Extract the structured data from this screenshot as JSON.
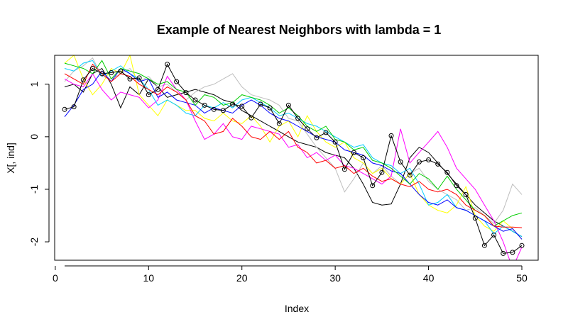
{
  "chart_data": {
    "type": "line",
    "title": "Example of Nearest Neighbors with lambda = 1",
    "xlabel": "Index",
    "ylabel": "X[, ind]",
    "xlim": [
      1,
      50
    ],
    "ylim": [
      -2.35,
      1.55
    ],
    "xticks": [
      0,
      10,
      20,
      30,
      40,
      50
    ],
    "yticks": [
      -2,
      -1,
      0,
      1
    ],
    "grid": false,
    "legend": "none",
    "x": [
      1,
      2,
      3,
      4,
      5,
      6,
      7,
      8,
      9,
      10,
      11,
      12,
      13,
      14,
      15,
      16,
      17,
      18,
      19,
      20,
      21,
      22,
      23,
      24,
      25,
      26,
      27,
      28,
      29,
      30,
      31,
      32,
      33,
      34,
      35,
      36,
      37,
      38,
      39,
      40,
      41,
      42,
      43,
      44,
      45,
      46,
      47,
      48,
      49,
      50
    ],
    "series": [
      {
        "color": "#000000",
        "marker": "circle",
        "values": [
          0.52,
          0.57,
          1.08,
          1.3,
          1.2,
          1.22,
          1.25,
          1.1,
          1.12,
          0.8,
          0.9,
          1.38,
          1.05,
          0.84,
          0.7,
          0.6,
          0.52,
          0.5,
          0.62,
          0.58,
          0.36,
          0.62,
          0.55,
          0.25,
          0.6,
          0.35,
          0.15,
          -0.02,
          0.08,
          -0.1,
          -0.62,
          -0.3,
          -0.4,
          -0.93,
          -0.68,
          0.02,
          -0.48,
          -0.73,
          -0.48,
          -0.44,
          -0.52,
          -0.68,
          -0.93,
          -1.1,
          -1.55,
          -2.07,
          -1.87,
          -2.22,
          -2.2,
          -2.07
        ]
      },
      {
        "color": "#ff0000",
        "values": [
          1.2,
          1.1,
          1.0,
          1.38,
          1.2,
          1.05,
          1.2,
          1.15,
          1.0,
          0.9,
          0.8,
          0.95,
          0.85,
          0.7,
          0.4,
          0.3,
          0.05,
          0.1,
          0.35,
          0.2,
          0.0,
          -0.05,
          0.1,
          -0.05,
          0.1,
          -0.2,
          -0.3,
          -0.5,
          -0.45,
          -0.6,
          -0.55,
          -0.7,
          -0.6,
          -0.75,
          -0.85,
          -0.8,
          -0.9,
          -0.95,
          -0.85,
          -1.0,
          -1.05,
          -1.0,
          -1.1,
          -1.3,
          -1.4,
          -1.5,
          -1.7,
          -1.72,
          -1.72,
          -1.73
        ]
      },
      {
        "color": "#00cd00",
        "values": [
          1.4,
          1.35,
          1.3,
          1.2,
          1.45,
          1.1,
          1.3,
          1.25,
          1.2,
          1.1,
          1.0,
          1.05,
          0.9,
          0.85,
          0.6,
          0.8,
          0.75,
          0.6,
          0.65,
          0.8,
          0.75,
          0.7,
          0.6,
          0.45,
          0.55,
          0.4,
          0.2,
          0.1,
          0.2,
          -0.05,
          -0.1,
          -0.25,
          -0.2,
          -0.45,
          -0.5,
          -0.6,
          -0.75,
          -0.9,
          -0.7,
          -0.8,
          -1.0,
          -0.75,
          -1.0,
          -1.2,
          -1.4,
          -1.5,
          -1.7,
          -1.6,
          -1.5,
          -1.45
        ]
      },
      {
        "color": "#0000ff",
        "values": [
          0.38,
          0.6,
          0.9,
          1.0,
          1.25,
          1.05,
          1.3,
          1.2,
          1.05,
          1.1,
          0.75,
          0.85,
          0.7,
          0.65,
          0.6,
          0.45,
          0.55,
          0.5,
          0.45,
          0.6,
          0.7,
          0.6,
          0.45,
          0.35,
          0.3,
          0.2,
          0.1,
          0.0,
          -0.05,
          -0.1,
          -0.25,
          -0.3,
          -0.35,
          -0.5,
          -0.55,
          -0.65,
          -0.7,
          -0.9,
          -1.1,
          -1.25,
          -1.3,
          -1.2,
          -1.35,
          -1.4,
          -1.5,
          -1.6,
          -1.7,
          -1.8,
          -1.75,
          -1.95
        ]
      },
      {
        "color": "#00ccff",
        "values": [
          1.3,
          1.25,
          1.4,
          1.45,
          1.15,
          1.25,
          1.35,
          1.2,
          1.1,
          0.9,
          0.6,
          0.7,
          0.6,
          0.45,
          0.4,
          0.6,
          0.55,
          0.65,
          0.55,
          0.7,
          0.75,
          0.65,
          0.55,
          0.4,
          0.45,
          0.35,
          0.25,
          0.2,
          0.1,
          0.0,
          -0.1,
          -0.2,
          -0.15,
          -0.4,
          -0.5,
          -0.55,
          -0.7,
          -0.6,
          -0.9,
          -1.3,
          -1.25,
          -1.1,
          -1.35,
          -1.4,
          -1.5,
          -1.6,
          -1.85,
          -1.7,
          -1.8,
          -1.9
        ]
      },
      {
        "color": "#ff00ff",
        "values": [
          1.1,
          1.0,
          0.95,
          1.2,
          0.9,
          0.7,
          0.85,
          0.8,
          0.75,
          0.55,
          0.7,
          1.15,
          0.9,
          0.7,
          0.3,
          -0.05,
          0.05,
          0.25,
          0.0,
          -0.05,
          0.2,
          0.15,
          0.1,
          0.05,
          -0.2,
          -0.15,
          -0.4,
          -0.3,
          -0.45,
          -0.35,
          -0.55,
          -0.6,
          -0.7,
          -0.8,
          -0.9,
          -0.75,
          0.15,
          -0.5,
          -0.3,
          -0.1,
          0.1,
          -0.2,
          -0.6,
          -0.8,
          -1.0,
          -1.3,
          -1.6,
          -2.0,
          -2.5,
          -2.1
        ]
      },
      {
        "color": "#ffff00",
        "values": [
          1.4,
          1.55,
          1.1,
          0.8,
          1.0,
          1.3,
          1.2,
          1.55,
          0.8,
          0.6,
          0.4,
          0.7,
          0.6,
          0.5,
          0.5,
          0.35,
          0.3,
          0.45,
          0.3,
          0.25,
          0.4,
          0.2,
          -0.1,
          0.2,
          0.3,
          0.0,
          0.4,
          0.1,
          -0.1,
          -0.2,
          -0.1,
          -0.4,
          -0.5,
          -0.7,
          -0.6,
          -0.8,
          -0.9,
          -0.7,
          -1.1,
          -1.3,
          -1.4,
          -1.45,
          -1.3,
          -0.95,
          -1.5,
          -1.7,
          -1.8,
          -1.6,
          -1.75,
          -1.95
        ]
      },
      {
        "color": "#bebebe",
        "values": [
          1.05,
          1.25,
          1.35,
          1.5,
          1.15,
          1.1,
          1.2,
          1.3,
          1.05,
          1.15,
          0.95,
          1.0,
          0.85,
          0.7,
          0.85,
          0.95,
          1.0,
          1.1,
          1.2,
          0.95,
          0.8,
          0.75,
          0.7,
          0.6,
          0.35,
          0.3,
          0.05,
          -0.2,
          -0.4,
          -0.6,
          -1.05,
          -0.8,
          -0.5,
          -0.7,
          -0.55,
          -0.75,
          -0.9,
          -0.7,
          -0.6,
          -0.85,
          -1.0,
          -1.1,
          -1.2,
          -1.4,
          -1.35,
          -1.5,
          -1.65,
          -1.4,
          -0.9,
          -1.1
        ]
      },
      {
        "color": "#000000",
        "values": [
          0.95,
          1.0,
          0.85,
          1.2,
          1.3,
          1.0,
          0.55,
          0.95,
          0.8,
          1.1,
          0.95,
          0.75,
          0.8,
          0.85,
          0.9,
          0.85,
          0.8,
          0.7,
          0.65,
          0.5,
          0.4,
          0.3,
          0.2,
          0.1,
          0.0,
          -0.1,
          -0.15,
          -0.2,
          -0.3,
          -0.35,
          -0.4,
          -0.6,
          -0.9,
          -1.25,
          -1.3,
          -1.28,
          -0.9,
          -0.4,
          -0.2,
          -0.3,
          -0.5,
          -0.7,
          -0.9,
          -1.1,
          -1.3,
          -1.45,
          -1.6,
          -1.7,
          -1.8,
          -1.9
        ]
      }
    ]
  }
}
